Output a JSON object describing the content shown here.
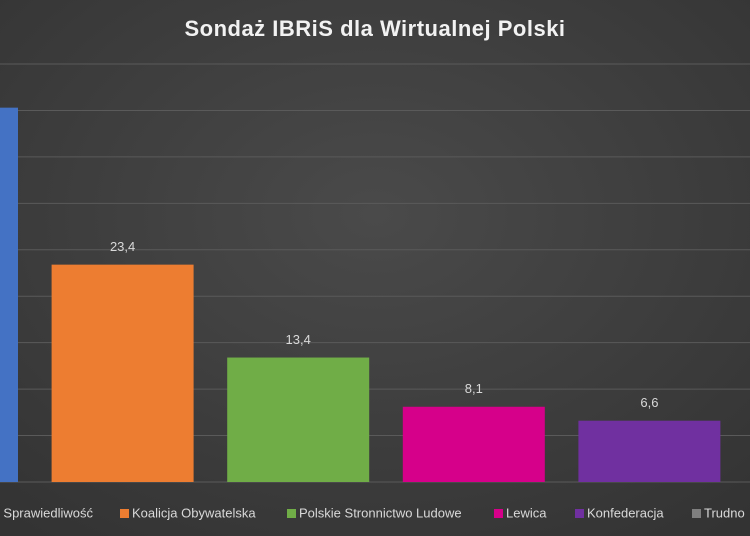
{
  "chart_data": {
    "type": "bar",
    "title": "Sondaż IBRiS dla Wirtualnej Polski",
    "categories": [
      "Sprawiedliwość",
      "Koalicja Obywatelska",
      "Polskie Stronnictwo Ludowe",
      "Lewica",
      "Konfederacja",
      "Trudno"
    ],
    "values": [
      40.3,
      23.4,
      13.4,
      8.1,
      6.6,
      null
    ],
    "value_labels": [
      null,
      "23,4",
      "13,4",
      "8,1",
      "6,6",
      null
    ],
    "colors": [
      "#4472c4",
      "#ed7d31",
      "#70ad47",
      "#d6008a",
      "#7030a0",
      "#7f7f7f"
    ],
    "ylim": [
      0,
      45
    ],
    "yticks": [
      0,
      5,
      10,
      15,
      20,
      25,
      30,
      35,
      40,
      45
    ],
    "grid": true
  }
}
